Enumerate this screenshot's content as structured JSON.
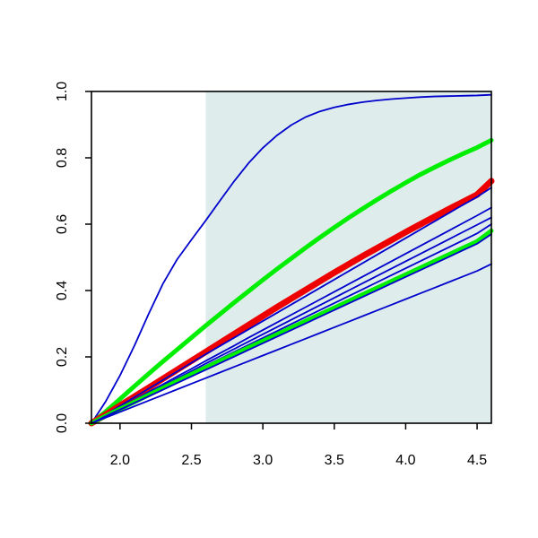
{
  "chart_data": {
    "type": "line",
    "title": "",
    "xlabel": "",
    "ylabel": "",
    "xlim": [
      1.8,
      4.6
    ],
    "ylim": [
      0.0,
      1.0
    ],
    "x_ticks": [
      "2.0",
      "2.5",
      "3.0",
      "3.5",
      "4.0",
      "4.5"
    ],
    "x_tick_values": [
      2.0,
      2.5,
      3.0,
      3.5,
      4.0,
      4.5
    ],
    "y_ticks": [
      "0.0",
      "0.2",
      "0.4",
      "0.6",
      "0.8",
      "1.0"
    ],
    "y_tick_values": [
      0.0,
      0.2,
      0.4,
      0.6,
      0.8,
      1.0
    ],
    "shaded_region": {
      "x_start": 2.6,
      "x_end": 4.6,
      "color": "#dfecec"
    },
    "grid": false,
    "legend": "none",
    "x": [
      1.8,
      1.9,
      2.0,
      2.1,
      2.2,
      2.3,
      2.4,
      2.5,
      2.6,
      2.7,
      2.8,
      2.9,
      3.0,
      3.1,
      3.2,
      3.3,
      3.4,
      3.5,
      3.6,
      3.7,
      3.8,
      3.9,
      4.0,
      4.1,
      4.2,
      4.3,
      4.4,
      4.5,
      4.6
    ],
    "series": [
      {
        "color": "#0000cc",
        "width": 1.8,
        "values": [
          0.0,
          0.066,
          0.144,
          0.233,
          0.329,
          0.42,
          0.494,
          0.553,
          0.611,
          0.671,
          0.73,
          0.784,
          0.83,
          0.868,
          0.899,
          0.923,
          0.94,
          0.952,
          0.961,
          0.968,
          0.973,
          0.977,
          0.98,
          0.983,
          0.985,
          0.986,
          0.987,
          0.988,
          0.99
        ]
      },
      {
        "color": "#00ee00",
        "width": 5,
        "values": [
          0.0,
          0.035,
          0.073,
          0.111,
          0.149,
          0.186,
          0.222,
          0.258,
          0.294,
          0.329,
          0.364,
          0.398,
          0.432,
          0.465,
          0.497,
          0.529,
          0.56,
          0.59,
          0.619,
          0.647,
          0.674,
          0.7,
          0.725,
          0.749,
          0.771,
          0.792,
          0.812,
          0.831,
          0.853
        ]
      },
      {
        "color": "#ee0000",
        "width": 7,
        "values": [
          0.0,
          0.026,
          0.053,
          0.08,
          0.107,
          0.134,
          0.161,
          0.188,
          0.215,
          0.242,
          0.269,
          0.296,
          0.323,
          0.35,
          0.376,
          0.402,
          0.428,
          0.454,
          0.479,
          0.504,
          0.528,
          0.552,
          0.576,
          0.599,
          0.622,
          0.645,
          0.667,
          0.689,
          0.73
        ]
      },
      {
        "color": "#0000cc",
        "width": 1.8,
        "values": [
          0.0,
          0.026,
          0.052,
          0.078,
          0.104,
          0.13,
          0.156,
          0.182,
          0.208,
          0.233,
          0.258,
          0.283,
          0.308,
          0.333,
          0.358,
          0.383,
          0.408,
          0.433,
          0.458,
          0.483,
          0.508,
          0.533,
          0.558,
          0.583,
          0.608,
          0.633,
          0.658,
          0.682,
          0.71
        ]
      },
      {
        "color": "#0000cc",
        "width": 1.8,
        "values": [
          0.0,
          0.023,
          0.047,
          0.07,
          0.094,
          0.117,
          0.141,
          0.164,
          0.188,
          0.211,
          0.234,
          0.258,
          0.281,
          0.304,
          0.327,
          0.35,
          0.373,
          0.396,
          0.419,
          0.442,
          0.465,
          0.488,
          0.511,
          0.534,
          0.557,
          0.58,
          0.603,
          0.626,
          0.65
        ]
      },
      {
        "color": "#0000cc",
        "width": 1.8,
        "values": [
          0.0,
          0.022,
          0.045,
          0.067,
          0.09,
          0.112,
          0.135,
          0.157,
          0.18,
          0.202,
          0.224,
          0.246,
          0.268,
          0.29,
          0.312,
          0.334,
          0.356,
          0.378,
          0.4,
          0.422,
          0.444,
          0.466,
          0.488,
          0.51,
          0.532,
          0.554,
          0.576,
          0.598,
          0.62
        ]
      },
      {
        "color": "#0000cc",
        "width": 1.8,
        "values": [
          0.0,
          0.022,
          0.044,
          0.066,
          0.088,
          0.11,
          0.131,
          0.152,
          0.173,
          0.194,
          0.215,
          0.236,
          0.257,
          0.278,
          0.299,
          0.32,
          0.341,
          0.362,
          0.383,
          0.404,
          0.425,
          0.446,
          0.467,
          0.488,
          0.509,
          0.53,
          0.551,
          0.572,
          0.6
        ]
      },
      {
        "color": "#00ee00",
        "width": 5,
        "values": [
          0.0,
          0.022,
          0.043,
          0.064,
          0.085,
          0.106,
          0.127,
          0.148,
          0.168,
          0.188,
          0.208,
          0.228,
          0.248,
          0.268,
          0.288,
          0.308,
          0.328,
          0.348,
          0.368,
          0.388,
          0.408,
          0.428,
          0.448,
          0.468,
          0.488,
          0.508,
          0.528,
          0.548,
          0.58
        ]
      },
      {
        "color": "#0000cc",
        "width": 1.8,
        "values": [
          0.0,
          0.021,
          0.041,
          0.061,
          0.081,
          0.101,
          0.121,
          0.141,
          0.161,
          0.181,
          0.201,
          0.221,
          0.241,
          0.261,
          0.281,
          0.301,
          0.321,
          0.341,
          0.361,
          0.381,
          0.401,
          0.421,
          0.441,
          0.461,
          0.481,
          0.501,
          0.521,
          0.541,
          0.57
        ]
      },
      {
        "color": "#0000cc",
        "width": 1.8,
        "values": [
          0.0,
          0.017,
          0.034,
          0.051,
          0.068,
          0.085,
          0.102,
          0.119,
          0.136,
          0.153,
          0.17,
          0.187,
          0.204,
          0.221,
          0.238,
          0.255,
          0.272,
          0.289,
          0.306,
          0.323,
          0.34,
          0.357,
          0.374,
          0.391,
          0.408,
          0.425,
          0.442,
          0.459,
          0.48
        ]
      }
    ]
  }
}
